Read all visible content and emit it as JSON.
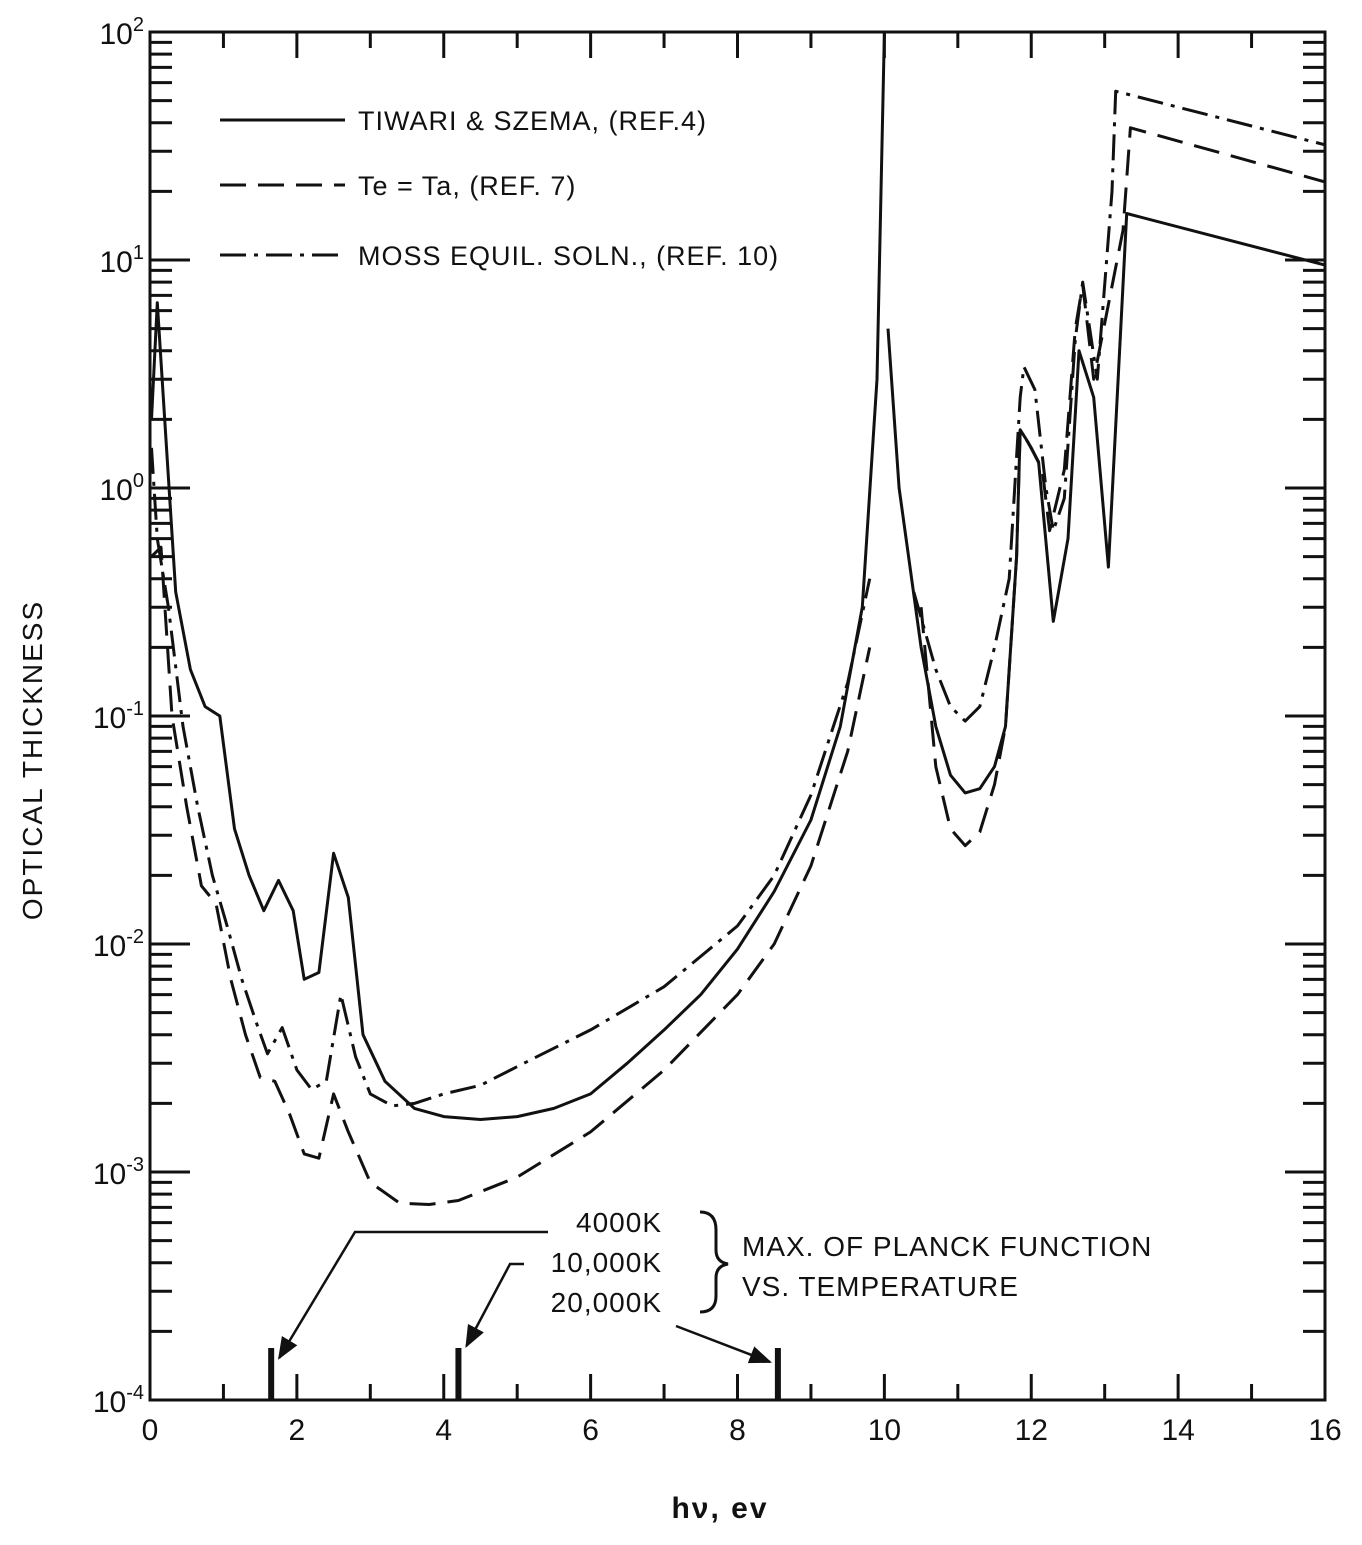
{
  "chart_data": {
    "type": "line",
    "xlabel": "hν, ev",
    "ylabel": "OPTICAL THICKNESS",
    "xlim": [
      0,
      16
    ],
    "ylim": [
      0.0001,
      100
    ],
    "yscale": "log",
    "grid": false,
    "legend_position": "top-left",
    "x_tick_labels": [
      "0",
      "2",
      "4",
      "6",
      "8",
      "10",
      "12",
      "14",
      "16"
    ],
    "y_tick_labels": [
      {
        "base": "10",
        "exp": "2"
      },
      {
        "base": "10",
        "exp": "1"
      },
      {
        "base": "10",
        "exp": "0"
      },
      {
        "base": "10",
        "exp": "-1"
      },
      {
        "base": "10",
        "exp": "-2"
      },
      {
        "base": "10",
        "exp": "-3"
      },
      {
        "base": "10",
        "exp": "-4"
      }
    ],
    "series": [
      {
        "name": "TIWARI & SZEMA, (REF.4)",
        "style": "solid",
        "points": [
          [
            0.02,
            2.0
          ],
          [
            0.1,
            6.5
          ],
          [
            0.2,
            2.0
          ],
          [
            0.35,
            0.35
          ],
          [
            0.55,
            0.16
          ],
          [
            0.75,
            0.11
          ],
          [
            0.95,
            0.1
          ],
          [
            1.15,
            0.032
          ],
          [
            1.35,
            0.02
          ],
          [
            1.55,
            0.014
          ],
          [
            1.75,
            0.019
          ],
          [
            1.95,
            0.014
          ],
          [
            2.1,
            0.007
          ],
          [
            2.3,
            0.0075
          ],
          [
            2.5,
            0.025
          ],
          [
            2.7,
            0.016
          ],
          [
            2.9,
            0.004
          ],
          [
            3.2,
            0.0025
          ],
          [
            3.6,
            0.0019
          ],
          [
            4.0,
            0.00175
          ],
          [
            4.5,
            0.0017
          ],
          [
            5.0,
            0.00175
          ],
          [
            5.5,
            0.0019
          ],
          [
            6.0,
            0.0022
          ],
          [
            6.5,
            0.003
          ],
          [
            7.0,
            0.0042
          ],
          [
            7.5,
            0.006
          ],
          [
            8.0,
            0.0095
          ],
          [
            8.5,
            0.017
          ],
          [
            9.0,
            0.035
          ],
          [
            9.4,
            0.09
          ],
          [
            9.7,
            0.3
          ],
          [
            9.9,
            3
          ],
          [
            10.0,
            100
          ]
        ]
      },
      {
        "name": "Te = Ta, (REF. 7)",
        "style": "dashed",
        "points": [
          [
            0.02,
            0.5
          ],
          [
            0.15,
            0.55
          ],
          [
            0.3,
            0.1
          ],
          [
            0.5,
            0.04
          ],
          [
            0.7,
            0.018
          ],
          [
            0.9,
            0.015
          ],
          [
            1.1,
            0.007
          ],
          [
            1.3,
            0.004
          ],
          [
            1.5,
            0.0026
          ],
          [
            1.7,
            0.0025
          ],
          [
            1.9,
            0.0018
          ],
          [
            2.1,
            0.0012
          ],
          [
            2.3,
            0.00115
          ],
          [
            2.5,
            0.0022
          ],
          [
            2.7,
            0.0015
          ],
          [
            3.0,
            0.0009
          ],
          [
            3.4,
            0.00073
          ],
          [
            3.8,
            0.00072
          ],
          [
            4.2,
            0.00075
          ],
          [
            5.0,
            0.00095
          ],
          [
            6.0,
            0.0015
          ],
          [
            7.0,
            0.0028
          ],
          [
            8.0,
            0.006
          ],
          [
            8.5,
            0.01
          ],
          [
            9.0,
            0.022
          ],
          [
            9.5,
            0.07
          ],
          [
            9.8,
            0.2
          ]
        ]
      },
      {
        "name": "MOSS EQUIL. SOLN., (REF. 10)",
        "style": "dash-dot",
        "points": [
          [
            0.02,
            1.5
          ],
          [
            0.1,
            0.6
          ],
          [
            0.25,
            0.3
          ],
          [
            0.45,
            0.09
          ],
          [
            0.65,
            0.04
          ],
          [
            0.85,
            0.02
          ],
          [
            1.05,
            0.012
          ],
          [
            1.25,
            0.007
          ],
          [
            1.45,
            0.0045
          ],
          [
            1.6,
            0.0033
          ],
          [
            1.8,
            0.0043
          ],
          [
            2.0,
            0.0028
          ],
          [
            2.2,
            0.0023
          ],
          [
            2.4,
            0.0025
          ],
          [
            2.6,
            0.006
          ],
          [
            2.8,
            0.0032
          ],
          [
            3.0,
            0.0022
          ],
          [
            3.3,
            0.00195
          ],
          [
            3.6,
            0.002
          ],
          [
            4.0,
            0.0022
          ],
          [
            4.5,
            0.0024
          ],
          [
            5.0,
            0.0029
          ],
          [
            6.0,
            0.0042
          ],
          [
            7.0,
            0.0065
          ],
          [
            8.0,
            0.012
          ],
          [
            8.5,
            0.02
          ],
          [
            9.0,
            0.045
          ],
          [
            9.5,
            0.14
          ],
          [
            9.8,
            0.4
          ]
        ]
      }
    ],
    "right_segments": {
      "solid": [
        [
          10.05,
          5
        ],
        [
          10.2,
          1
        ],
        [
          10.5,
          0.2
        ],
        [
          10.7,
          0.09
        ],
        [
          10.9,
          0.055
        ],
        [
          11.1,
          0.046
        ],
        [
          11.3,
          0.048
        ],
        [
          11.5,
          0.06
        ],
        [
          11.65,
          0.09
        ],
        [
          11.8,
          0.5
        ],
        [
          11.85,
          1.8
        ],
        [
          11.95,
          1.6
        ],
        [
          12.1,
          1.3
        ],
        [
          12.3,
          0.26
        ],
        [
          12.5,
          0.6
        ],
        [
          12.65,
          4
        ],
        [
          12.85,
          2.5
        ],
        [
          13.05,
          0.45
        ],
        [
          13.3,
          16
        ],
        [
          16,
          9.5
        ]
      ],
      "dashed": [
        [
          10.5,
          0.3
        ],
        [
          10.7,
          0.06
        ],
        [
          10.9,
          0.032
        ],
        [
          11.1,
          0.027
        ],
        [
          11.3,
          0.031
        ],
        [
          11.5,
          0.05
        ],
        [
          11.65,
          0.09
        ],
        [
          11.8,
          0.5
        ],
        [
          11.85,
          1.8
        ],
        [
          12.0,
          1.5
        ],
        [
          12.15,
          1.2
        ],
        [
          12.25,
          0.65
        ],
        [
          12.45,
          1.2
        ],
        [
          12.6,
          5
        ],
        [
          12.7,
          7.8
        ],
        [
          12.85,
          3
        ],
        [
          13.25,
          13.5
        ],
        [
          13.35,
          38
        ],
        [
          16,
          22
        ]
      ],
      "dash-dot": [
        [
          10.4,
          0.35
        ],
        [
          10.7,
          0.16
        ],
        [
          10.9,
          0.11
        ],
        [
          11.1,
          0.095
        ],
        [
          11.3,
          0.11
        ],
        [
          11.5,
          0.2
        ],
        [
          11.7,
          0.4
        ],
        [
          11.85,
          2.5
        ],
        [
          11.9,
          3.4
        ],
        [
          12.05,
          2.7
        ],
        [
          12.2,
          1.0
        ],
        [
          12.3,
          0.65
        ],
        [
          12.45,
          0.9
        ],
        [
          12.6,
          4.5
        ],
        [
          12.7,
          8
        ],
        [
          12.9,
          3
        ],
        [
          13.1,
          20
        ],
        [
          13.15,
          55
        ],
        [
          16,
          32
        ]
      ]
    },
    "annotation": {
      "temperatures": [
        "4000K",
        "10,000K",
        "20,000K"
      ],
      "marker_x": [
        1.65,
        4.2,
        8.55
      ],
      "label_line1": "MAX. OF PLANCK FUNCTION",
      "label_line2": "VS.  TEMPERATURE"
    }
  }
}
